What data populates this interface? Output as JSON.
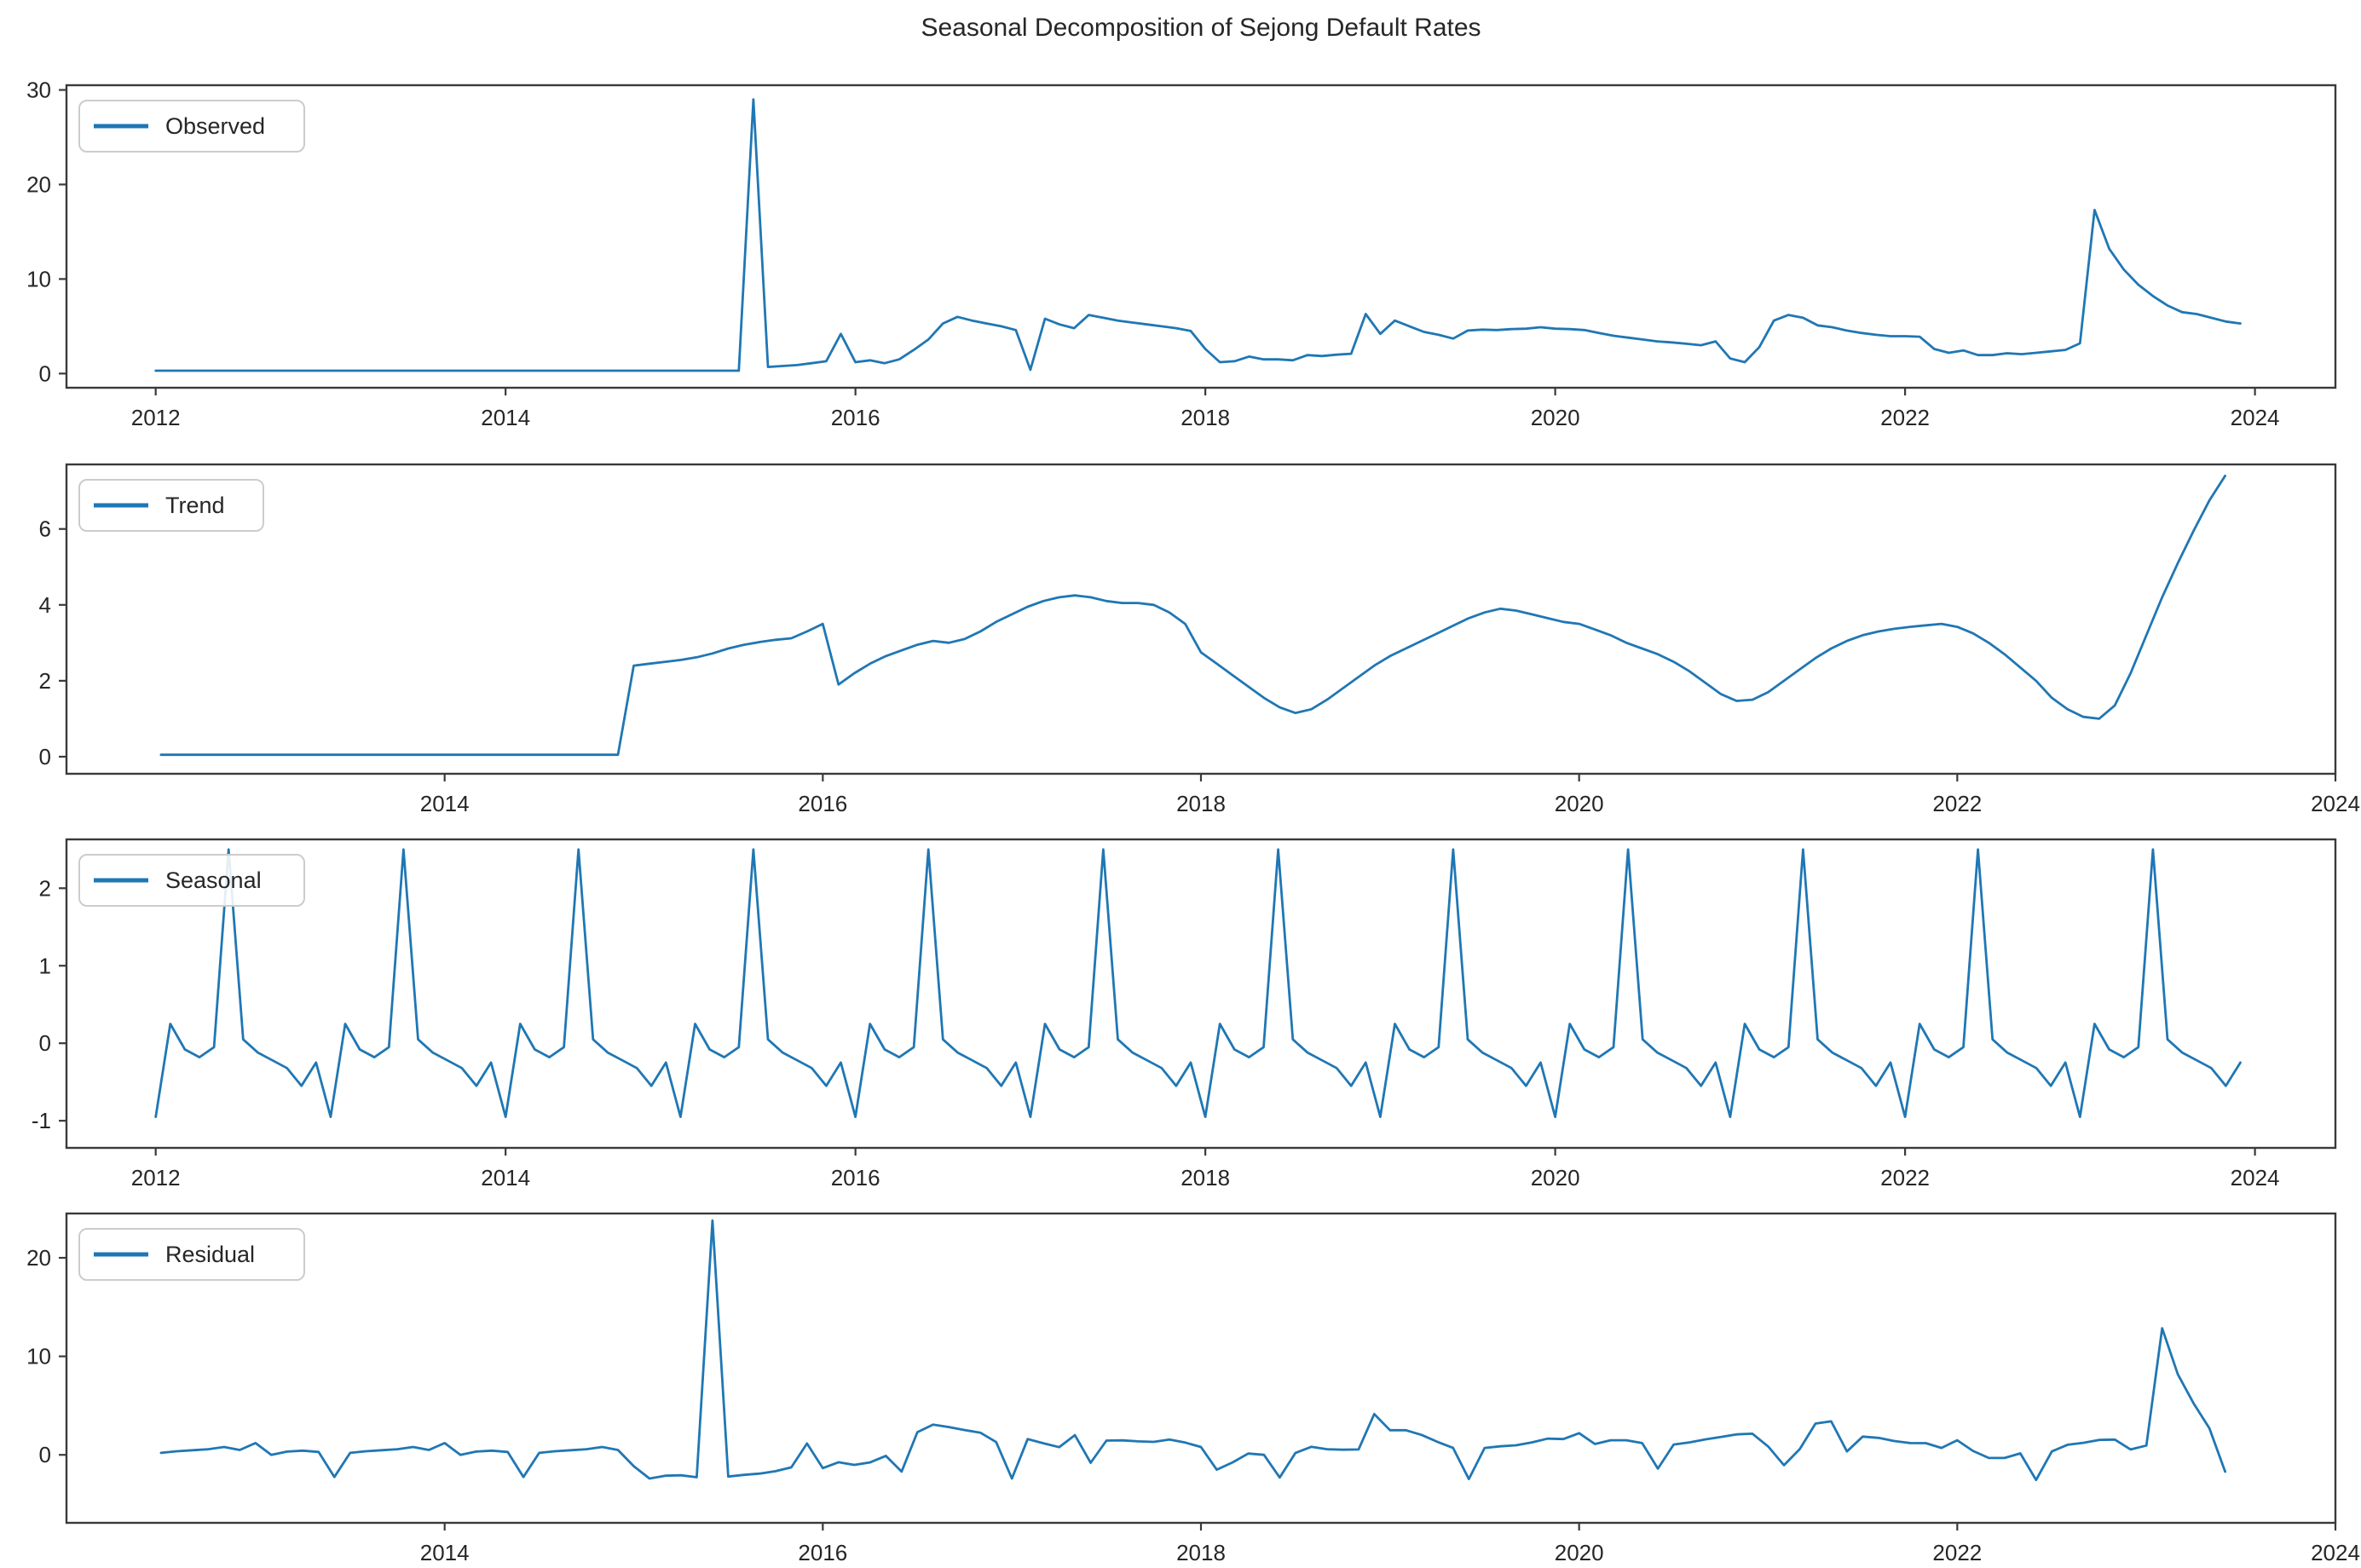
{
  "chart_data": {
    "type": "line",
    "title": "Seasonal Decomposition of Sejong Default Rates",
    "line_color": "#1f77b4",
    "background": "#ffffff",
    "grid": false,
    "legend_position": "upper left",
    "x_unit": "year (monthly samples)",
    "frame_color": "#3a3a3a",
    "residual_relation": "residual = observed - trend - seasonal",
    "subplots": [
      {
        "id": "observed",
        "legend": "Observed",
        "xlim": [
          2011.49,
          2024.46
        ],
        "ylim": [
          -1.5,
          30.5
        ],
        "xticks": [
          2012,
          2014,
          2016,
          2018,
          2020,
          2022,
          2024
        ],
        "yticks": [
          0,
          10,
          20,
          30
        ],
        "series": {
          "start_year": 2012,
          "start_month": 1,
          "values": [
            0.3,
            0.3,
            0.3,
            0.3,
            0.3,
            0.3,
            0.3,
            0.3,
            0.3,
            0.3,
            0.3,
            0.3,
            0.3,
            0.3,
            0.3,
            0.3,
            0.3,
            0.3,
            0.3,
            0.3,
            0.3,
            0.3,
            0.3,
            0.3,
            0.3,
            0.3,
            0.3,
            0.3,
            0.3,
            0.3,
            0.3,
            0.3,
            0.3,
            0.3,
            0.3,
            0.3,
            0.3,
            0.3,
            0.3,
            0.3,
            0.3,
            29.0,
            0.7,
            0.8,
            0.9,
            1.1,
            1.3,
            4.2,
            1.2,
            1.4,
            1.1,
            1.5,
            2.5,
            3.6,
            5.3,
            6.0,
            5.6,
            5.3,
            5.0,
            4.6,
            0.4,
            5.8,
            5.2,
            4.8,
            6.2,
            5.9,
            5.6,
            5.4,
            5.2,
            5.0,
            4.8,
            4.5,
            2.6,
            1.2,
            1.3,
            1.8,
            1.5,
            1.5,
            1.4,
            1.95,
            1.85,
            2.0,
            2.1,
            6.3,
            4.2,
            5.6,
            5.0,
            4.4,
            4.1,
            3.7,
            4.55,
            4.65,
            4.6,
            4.7,
            4.75,
            4.9,
            4.75,
            4.7,
            4.6,
            4.3,
            4.0,
            3.8,
            3.6,
            3.4,
            3.3,
            3.15,
            3.0,
            3.4,
            1.6,
            1.2,
            2.8,
            5.6,
            6.2,
            5.9,
            5.1,
            4.9,
            4.55,
            4.3,
            4.1,
            3.95,
            3.95,
            3.9,
            2.6,
            2.2,
            2.45,
            1.95,
            1.95,
            2.15,
            2.05,
            2.2,
            2.35,
            2.5,
            3.2,
            17.3,
            13.2,
            11.0,
            9.4,
            8.2,
            7.2,
            6.5,
            6.3,
            5.9,
            5.5,
            5.3
          ]
        }
      },
      {
        "id": "trend",
        "legend": "Trend",
        "xlim": [
          2012.0,
          2024.0
        ],
        "ylim": [
          -0.45,
          7.7
        ],
        "xticks": [
          2014,
          2016,
          2018,
          2020,
          2022,
          2024
        ],
        "yticks": [
          0,
          2,
          4,
          6
        ],
        "series": {
          "start_year": 2012,
          "start_month": 7,
          "values": [
            0.05,
            0.05,
            0.05,
            0.05,
            0.05,
            0.05,
            0.05,
            0.05,
            0.05,
            0.05,
            0.05,
            0.05,
            0.05,
            0.05,
            0.05,
            0.05,
            0.05,
            0.05,
            0.05,
            0.05,
            0.05,
            0.05,
            0.05,
            0.05,
            0.05,
            0.05,
            0.05,
            0.05,
            0.05,
            0.05,
            2.4,
            2.45,
            2.5,
            2.55,
            2.62,
            2.72,
            2.85,
            2.95,
            3.02,
            3.08,
            3.12,
            3.3,
            3.5,
            1.9,
            2.2,
            2.45,
            2.65,
            2.8,
            2.95,
            3.05,
            3.0,
            3.1,
            3.3,
            3.55,
            3.75,
            3.95,
            4.1,
            4.2,
            4.25,
            4.2,
            4.1,
            4.05,
            4.05,
            4.0,
            3.8,
            3.5,
            2.75,
            2.45,
            2.15,
            1.85,
            1.55,
            1.3,
            1.15,
            1.25,
            1.5,
            1.8,
            2.1,
            2.4,
            2.65,
            2.85,
            3.05,
            3.25,
            3.45,
            3.65,
            3.8,
            3.9,
            3.85,
            3.75,
            3.65,
            3.55,
            3.5,
            3.35,
            3.2,
            3.0,
            2.85,
            2.7,
            2.5,
            2.25,
            1.95,
            1.65,
            1.47,
            1.5,
            1.7,
            2.0,
            2.3,
            2.6,
            2.85,
            3.05,
            3.2,
            3.3,
            3.37,
            3.42,
            3.46,
            3.5,
            3.42,
            3.25,
            3.0,
            2.7,
            2.35,
            2.0,
            1.55,
            1.25,
            1.05,
            1.0,
            1.35,
            2.2,
            3.2,
            4.2,
            5.1,
            5.95,
            6.75,
            7.4
          ]
        }
      },
      {
        "id": "seasonal",
        "legend": "Seasonal",
        "xlim": [
          2011.49,
          2024.46
        ],
        "ylim": [
          -1.35,
          2.63
        ],
        "xticks": [
          2012,
          2014,
          2016,
          2018,
          2020,
          2022,
          2024
        ],
        "yticks": [
          -1,
          0,
          1,
          2
        ],
        "series": {
          "start_year": 2012,
          "start_month": 1,
          "pattern": [
            -0.95,
            0.25,
            -0.08,
            -0.18,
            -0.05,
            2.5,
            0.05,
            -0.12,
            -0.22,
            -0.32,
            -0.55,
            -0.25
          ],
          "repeat": 12
        }
      },
      {
        "id": "residual",
        "legend": "Residual",
        "xlim": [
          2012.0,
          2024.0
        ],
        "ylim": [
          -6.9,
          24.5
        ],
        "xticks": [
          2014,
          2016,
          2018,
          2020,
          2022,
          2024
        ],
        "yticks": [
          0,
          10,
          20
        ],
        "series": {
          "start_year": 2012,
          "start_month": 7,
          "values": [
            0.2,
            0.37,
            0.47,
            0.57,
            0.8,
            0.5,
            1.2,
            0.0,
            0.33,
            0.43,
            0.3,
            -2.25,
            0.2,
            0.37,
            0.47,
            0.57,
            0.8,
            0.5,
            1.2,
            0.0,
            0.33,
            0.43,
            0.3,
            -2.25,
            0.2,
            0.37,
            0.47,
            0.57,
            0.8,
            0.5,
            -1.15,
            -2.4,
            -2.12,
            -2.07,
            -2.27,
            23.78,
            -2.2,
            -2.03,
            -1.9,
            -1.66,
            -1.27,
            1.15,
            -1.35,
            -0.75,
            -1.02,
            -0.77,
            -0.1,
            -1.7,
            2.3,
            3.07,
            2.82,
            2.52,
            2.25,
            1.3,
            -2.4,
            1.6,
            1.18,
            0.78,
            2.0,
            -0.8,
            1.45,
            1.47,
            1.37,
            1.32,
            1.55,
            1.25,
            0.8,
            -1.5,
            -0.77,
            0.13,
            0.0,
            -2.3,
            0.2,
            0.82,
            0.57,
            0.52,
            0.55,
            4.15,
            2.5,
            2.5,
            2.03,
            1.33,
            0.7,
            -2.45,
            0.7,
            0.87,
            0.97,
            1.27,
            1.65,
            1.6,
            2.2,
            1.1,
            1.48,
            1.48,
            1.2,
            -1.4,
            1.05,
            1.27,
            1.57,
            1.82,
            2.08,
            2.15,
            0.85,
            -1.05,
            0.58,
            3.18,
            3.4,
            0.35,
            1.85,
            1.72,
            1.4,
            1.2,
            1.19,
            0.7,
            1.48,
            0.4,
            -0.32,
            -0.32,
            0.15,
            -2.55,
            0.35,
            1.02,
            1.22,
            1.52,
            1.55,
            0.55,
            0.95,
            12.85,
            8.18,
            5.23,
            2.7,
            -1.7
          ]
        }
      }
    ]
  }
}
